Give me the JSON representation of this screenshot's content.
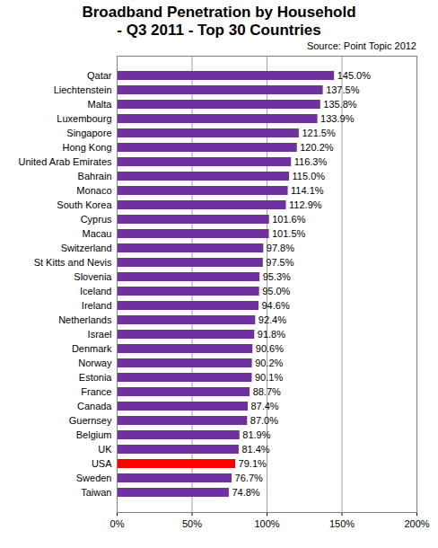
{
  "chart_data": {
    "type": "bar",
    "orientation": "horizontal",
    "title": "Broadband Penetration by Household",
    "subtitle": "- Q3 2011 - Top 30 Countries",
    "annotations": [
      "Source: Point Topic 2012"
    ],
    "categories": [
      "Qatar",
      "Liechtenstein",
      "Malta",
      "Luxembourg",
      "Singapore",
      "Hong Kong",
      "United Arab Emirates",
      "Bahrain",
      "Monaco",
      "South Korea",
      "Cyprus",
      "Macau",
      "Switzerland",
      "St Kitts and Nevis",
      "Slovenia",
      "Iceland",
      "Ireland",
      "Netherlands",
      "Israel",
      "Denmark",
      "Norway",
      "Estonia",
      "France",
      "Canada",
      "Guernsey",
      "Belgium",
      "UK",
      "USA",
      "Sweden",
      "Taiwan"
    ],
    "values": [
      145.0,
      137.5,
      135.8,
      133.9,
      121.5,
      120.2,
      116.3,
      115.0,
      114.1,
      112.9,
      101.6,
      101.5,
      97.8,
      97.5,
      95.3,
      95.0,
      94.6,
      92.4,
      91.8,
      90.6,
      90.2,
      90.1,
      88.7,
      87.4,
      87.0,
      81.9,
      81.4,
      79.1,
      76.7,
      74.8
    ],
    "value_labels": [
      "145.0%",
      "137.5%",
      "135.8%",
      "133.9%",
      "121.5%",
      "120.2%",
      "116.3%",
      "115.0%",
      "114.1%",
      "112.9%",
      "101.6%",
      "101.5%",
      "97.8%",
      "97.5%",
      "95.3%",
      "95.0%",
      "94.6%",
      "92.4%",
      "91.8%",
      "90.6%",
      "90.2%",
      "90.1%",
      "88.7%",
      "87.4%",
      "87.0%",
      "81.9%",
      "81.4%",
      "79.1%",
      "76.7%",
      "74.8%"
    ],
    "colors": [
      "#7030a0",
      "#7030a0",
      "#7030a0",
      "#7030a0",
      "#7030a0",
      "#7030a0",
      "#7030a0",
      "#7030a0",
      "#7030a0",
      "#7030a0",
      "#7030a0",
      "#7030a0",
      "#7030a0",
      "#7030a0",
      "#7030a0",
      "#7030a0",
      "#7030a0",
      "#7030a0",
      "#7030a0",
      "#7030a0",
      "#7030a0",
      "#7030a0",
      "#7030a0",
      "#7030a0",
      "#7030a0",
      "#7030a0",
      "#7030a0",
      "#ff0000",
      "#7030a0",
      "#7030a0"
    ],
    "xlim": [
      0,
      200
    ],
    "xticks": [
      {
        "value": 0,
        "label": "0%"
      },
      {
        "value": 50,
        "label": "50%"
      },
      {
        "value": 100,
        "label": "100%"
      },
      {
        "value": 150,
        "label": "150%"
      },
      {
        "value": 200,
        "label": "200%"
      }
    ],
    "grid": true,
    "data_labels": true
  }
}
